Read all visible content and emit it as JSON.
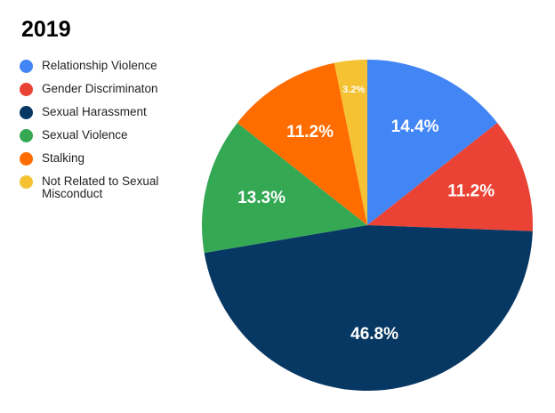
{
  "chart_data": {
    "type": "pie",
    "title": "2019",
    "categories": [
      "Relationship Violence",
      "Gender Discriminaton",
      "Sexual Harassment",
      "Sexual Violence",
      "Stalking",
      "Not Related to Sexual Misconduct"
    ],
    "values": [
      14.4,
      11.2,
      46.8,
      13.3,
      11.2,
      3.2
    ],
    "value_labels": [
      "14.4%",
      "11.2%",
      "46.8%",
      "13.3%",
      "11.2%",
      "3.2%"
    ],
    "colors": [
      "#4285F4",
      "#EA4335",
      "#073763",
      "#34A853",
      "#FF6D01",
      "#F4C232"
    ],
    "start_angle": "12 o'clock",
    "direction": "clockwise",
    "legend_position": "left",
    "unit": "%"
  },
  "title": "2019",
  "legend": {
    "items": [
      {
        "label": "Relationship Violence",
        "color": "#4285F4"
      },
      {
        "label": "Gender Discriminaton",
        "color": "#EA4335"
      },
      {
        "label": "Sexual Harassment",
        "color": "#073763"
      },
      {
        "label": "Sexual Violence",
        "color": "#34A853"
      },
      {
        "label": "Stalking",
        "color": "#FF6D01"
      },
      {
        "label": "Not Related to Sexual Misconduct",
        "color": "#F4C232"
      }
    ]
  }
}
